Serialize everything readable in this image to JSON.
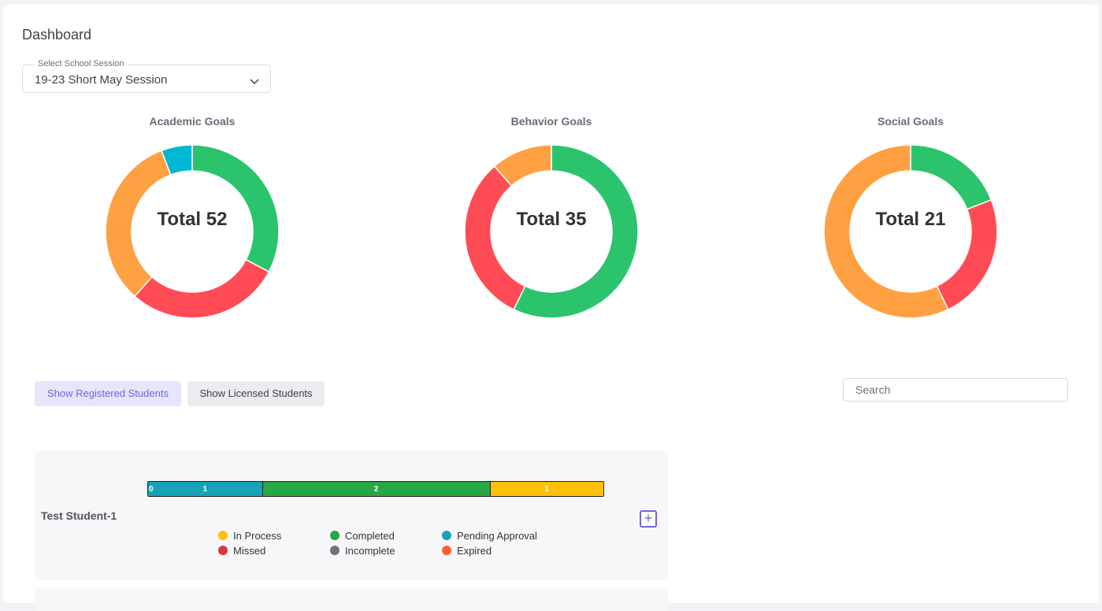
{
  "page": {
    "title": "Dashboard"
  },
  "session": {
    "label": "Select School Session",
    "value": "19-23 Short May Session"
  },
  "chart_data": [
    {
      "type": "pie",
      "title": "Academic Goals",
      "center_label": "Total 52",
      "total": 52,
      "slices": [
        {
          "label": "Completed",
          "value": 17,
          "color": "#2bc46d"
        },
        {
          "label": "Missed",
          "value": 15,
          "color": "#ff4b55"
        },
        {
          "label": "In Process",
          "value": 17,
          "color": "#ffa042"
        },
        {
          "label": "Pending Approval",
          "value": 3,
          "color": "#00b8d4"
        }
      ]
    },
    {
      "type": "pie",
      "title": "Behavior Goals",
      "center_label": "Total 35",
      "total": 35,
      "slices": [
        {
          "label": "Completed",
          "value": 20,
          "color": "#2bc46d"
        },
        {
          "label": "Missed",
          "value": 11,
          "color": "#ff4b55"
        },
        {
          "label": "In Process",
          "value": 4,
          "color": "#ffa042"
        }
      ]
    },
    {
      "type": "pie",
      "title": "Social Goals",
      "center_label": "Total 21",
      "total": 21,
      "slices": [
        {
          "label": "Completed",
          "value": 4,
          "color": "#2bc46d"
        },
        {
          "label": "Missed",
          "value": 5,
          "color": "#ff4b55"
        },
        {
          "label": "In Process",
          "value": 12,
          "color": "#ffa042"
        }
      ]
    }
  ],
  "buttons": {
    "registered": "Show Registered Students",
    "licensed": "Show Licensed Students"
  },
  "search": {
    "placeholder": "Search",
    "icon": "none"
  },
  "students": [
    {
      "name": "Test Student-1",
      "progress_zero_label": "0",
      "segments": [
        {
          "label": "1",
          "value": 1,
          "color": "#17a2b8"
        },
        {
          "label": "2",
          "value": 2,
          "color": "#28a745"
        },
        {
          "label": "1",
          "value": 1,
          "color": "#ffc107"
        }
      ],
      "add_icon": "plus-icon"
    }
  ],
  "legend": [
    {
      "label": "In Process",
      "color": "#ffc107"
    },
    {
      "label": "Completed",
      "color": "#28a745"
    },
    {
      "label": "Pending Approval",
      "color": "#17a2b8"
    },
    {
      "label": "Missed",
      "color": "#dc3545"
    },
    {
      "label": "Incomplete",
      "color": "#6c757d"
    },
    {
      "label": "Expired",
      "color": "#fd5e2b"
    }
  ]
}
